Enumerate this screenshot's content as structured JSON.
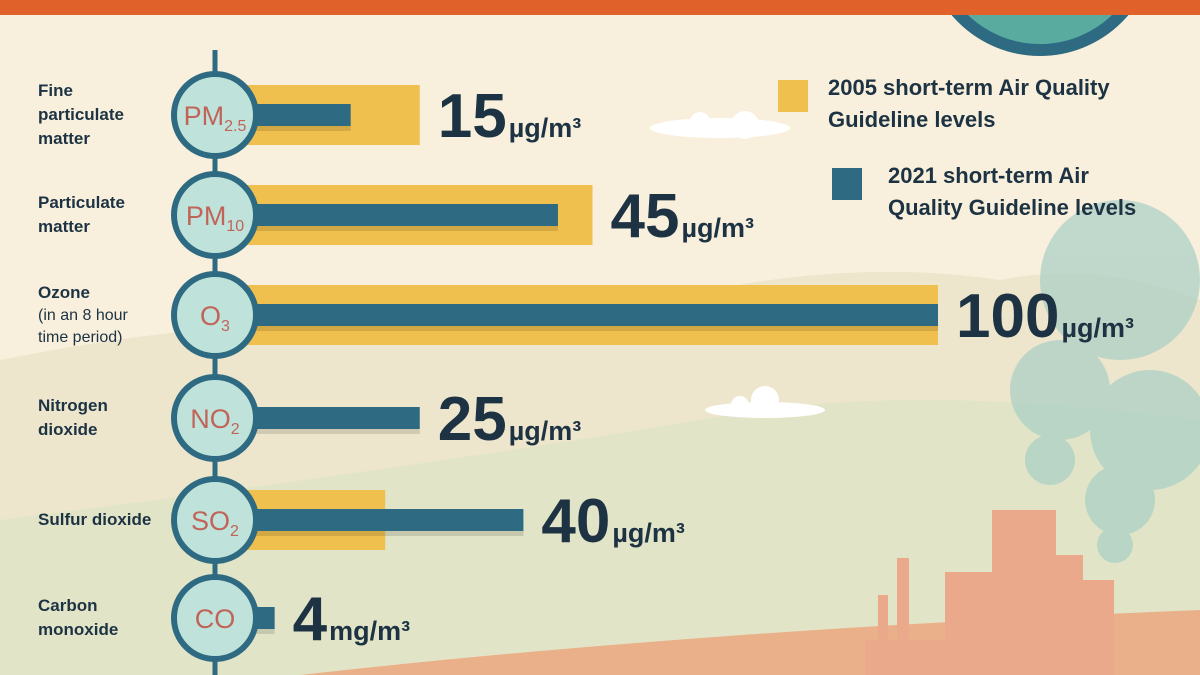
{
  "chart_data": {
    "type": "hbar",
    "categories": [
      "Fine particulate matter",
      "Particulate matter",
      "Ozone",
      "Nitrogen dioxide",
      "Sulfur dioxide",
      "Carbon monoxide"
    ],
    "category_notes": [
      null,
      null,
      "(in an 8 hour time period)",
      null,
      null,
      null
    ],
    "symbols": [
      {
        "text": "PM",
        "sub": "2.5"
      },
      {
        "text": "PM",
        "sub": "10"
      },
      {
        "text": "O",
        "sub": "3"
      },
      {
        "text": "NO",
        "sub": "2"
      },
      {
        "text": "SO",
        "sub": "2"
      },
      {
        "text": "CO"
      }
    ],
    "series": [
      {
        "name": "2005 short-term Air Quality Guideline levels",
        "color": "#f0c04e",
        "values": [
          25,
          50,
          100,
          null,
          20,
          null
        ]
      },
      {
        "name": "2021 short-term Air Quality Guideline levels",
        "color": "#2e6a82",
        "values": [
          15,
          45,
          100,
          25,
          40,
          4
        ]
      }
    ],
    "units": [
      "µg/m³",
      "µg/m³",
      "µg/m³",
      "µg/m³",
      "µg/m³",
      "mg/m³"
    ],
    "xlim": [
      0,
      100
    ]
  }
}
